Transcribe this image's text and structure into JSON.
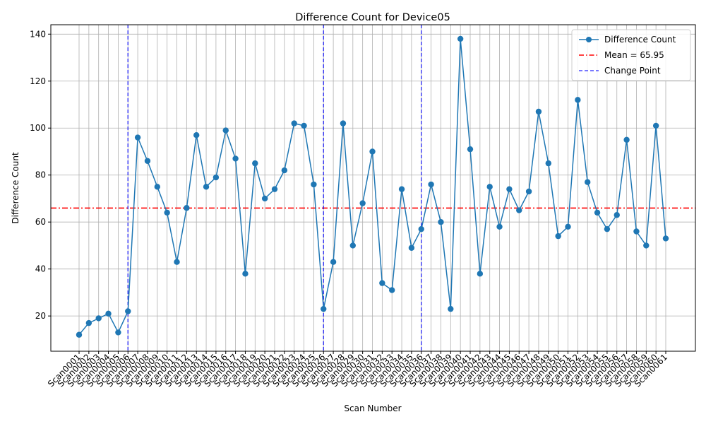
{
  "chart_data": {
    "type": "line",
    "title": "Difference Count for Device05",
    "xlabel": "Scan Number",
    "ylabel": "Difference Count",
    "categories": [
      "Scan0001",
      "Scan0002",
      "Scan0003",
      "Scan0004",
      "Scan0005",
      "Scan0006",
      "Scan0007",
      "Scan0008",
      "Scan0009",
      "Scan0010",
      "Scan0011",
      "Scan0012",
      "Scan0013",
      "Scan0014",
      "Scan0015",
      "Scan0016",
      "Scan0017",
      "Scan0018",
      "Scan0019",
      "Scan0020",
      "Scan0021",
      "Scan0022",
      "Scan0023",
      "Scan0024",
      "Scan0025",
      "Scan0026",
      "Scan0027",
      "Scan0028",
      "Scan0029",
      "Scan0030",
      "Scan0031",
      "Scan0032",
      "Scan0033",
      "Scan0034",
      "Scan0035",
      "Scan0036",
      "Scan0037",
      "Scan0038",
      "Scan0039",
      "Scan0040",
      "Scan0041",
      "Scan0042",
      "Scan0043",
      "Scan0044",
      "Scan0045",
      "Scan0046",
      "Scan0047",
      "Scan0048",
      "Scan0049",
      "Scan0050",
      "Scan0051",
      "Scan0052",
      "Scan0053",
      "Scan0054",
      "Scan0055",
      "Scan0056",
      "Scan0057",
      "Scan0058",
      "Scan0059",
      "Scan0060",
      "Scan0061"
    ],
    "series": [
      {
        "name": "Difference Count",
        "color": "#1f77b4",
        "values": [
          12,
          17,
          19,
          21,
          13,
          22,
          96,
          86,
          75,
          64,
          43,
          66,
          97,
          75,
          79,
          99,
          87,
          38,
          85,
          70,
          74,
          82,
          102,
          101,
          76,
          23,
          43,
          102,
          50,
          68,
          90,
          34,
          31,
          74,
          49,
          57,
          76,
          60,
          23,
          138,
          91,
          38,
          75,
          58,
          74,
          65,
          73,
          107,
          85,
          54,
          58,
          112,
          77,
          64,
          57,
          63,
          95,
          56,
          50,
          101,
          53
        ]
      }
    ],
    "mean": {
      "label": "Mean = 65.95",
      "value": 65.95,
      "color": "#ff0000"
    },
    "change_points": {
      "label": "Change Point",
      "indices": [
        5,
        25,
        35
      ],
      "color": "#0000ff"
    },
    "ylim": [
      5,
      144
    ],
    "yticks": [
      20,
      40,
      60,
      80,
      100,
      120,
      140
    ],
    "grid": true,
    "legend_position": "top-right"
  }
}
